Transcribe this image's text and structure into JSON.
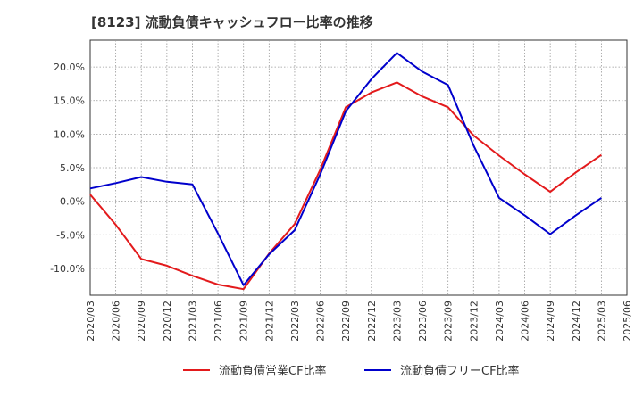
{
  "chart_data": {
    "type": "line",
    "title": "[8123]  流動負債キャッシュフロー比率の推移",
    "xlabel": "",
    "ylabel": "",
    "categories": [
      "2020/03",
      "2020/06",
      "2020/09",
      "2020/12",
      "2021/03",
      "2021/06",
      "2021/09",
      "2021/12",
      "2022/03",
      "2022/06",
      "2022/09",
      "2022/12",
      "2023/03",
      "2023/06",
      "2023/09",
      "2023/12",
      "2024/03",
      "2024/06",
      "2024/09",
      "2024/12",
      "2025/03",
      "2025/06"
    ],
    "y_ticks": [
      "20.0%",
      "15.0%",
      "10.0%",
      "5.0%",
      "0.0%",
      "-5.0%",
      "-10.0%"
    ],
    "y_tick_values": [
      20,
      15,
      10,
      5,
      0,
      -5,
      -10
    ],
    "ylim": [
      -14,
      24
    ],
    "grid": true,
    "legend_position": "bottom",
    "series": [
      {
        "name": "流動負債営業CF比率",
        "color": "#e31a1c",
        "values": [
          1.0,
          -3.5,
          -8.6,
          -9.6,
          -11.1,
          -12.4,
          -13.1,
          -7.8,
          -3.4,
          4.7,
          14.0,
          16.2,
          17.7,
          15.6,
          14.0,
          9.8,
          6.8,
          4.0,
          1.4,
          4.3,
          6.9,
          null
        ]
      },
      {
        "name": "流動負債フリーCF比率",
        "color": "#0000cc",
        "values": [
          1.9,
          2.7,
          3.6,
          2.9,
          2.5,
          -4.8,
          -12.5,
          -7.9,
          -4.3,
          4.0,
          13.4,
          18.2,
          22.1,
          19.3,
          17.3,
          8.3,
          0.5,
          -2.1,
          -4.9,
          -2.1,
          0.5,
          null
        ]
      }
    ]
  }
}
